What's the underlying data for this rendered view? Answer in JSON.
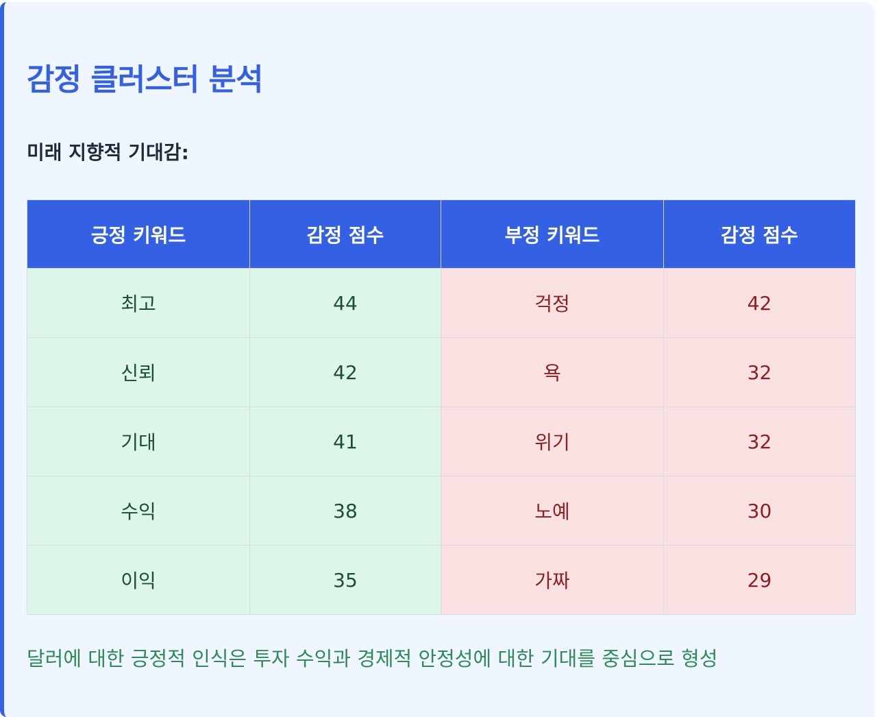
{
  "title": "감정 클러스터 분석",
  "subtitle": "미래 지향적 기대감:",
  "table": {
    "headers": [
      "긍정 키워드",
      "감정 점수",
      "부정 키워드",
      "감정 점수"
    ],
    "rows": [
      {
        "pos_keyword": "최고",
        "pos_score": "44",
        "neg_keyword": "걱정",
        "neg_score": "42"
      },
      {
        "pos_keyword": "신뢰",
        "pos_score": "42",
        "neg_keyword": "욕",
        "neg_score": "32"
      },
      {
        "pos_keyword": "기대",
        "pos_score": "41",
        "neg_keyword": "위기",
        "neg_score": "32"
      },
      {
        "pos_keyword": "수익",
        "pos_score": "38",
        "neg_keyword": "노예",
        "neg_score": "30"
      },
      {
        "pos_keyword": "이익",
        "pos_score": "35",
        "neg_keyword": "가짜",
        "neg_score": "29"
      }
    ]
  },
  "conclusion": "달러에 대한 긍정적 인식은 투자 수익과 경제적 안정성에 대한 기대를 중심으로 형성",
  "colors": {
    "accent": "#3461e3",
    "positive_bg": "#dcf7e8",
    "negative_bg": "#f9e1e2",
    "positive_text": "#1c4d37",
    "negative_text": "#8a1f1f",
    "conclusion_text": "#2e8b57"
  }
}
